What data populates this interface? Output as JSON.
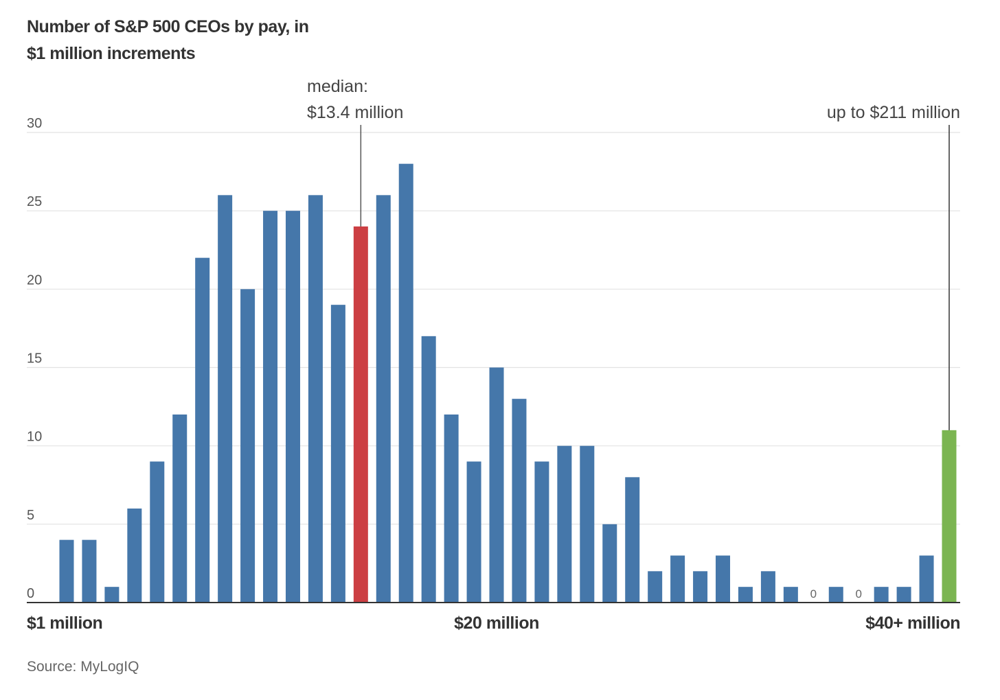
{
  "chart_data": {
    "type": "bar",
    "title": "Number of S&P 500 CEOs by pay, in $1 million increments",
    "title_lines": [
      "Number of S&P 500 CEOs by pay, in",
      "$1 million increments"
    ],
    "xlabel": "",
    "ylabel": "",
    "ylim": [
      0,
      30
    ],
    "yticks": [
      0,
      5,
      10,
      15,
      20,
      25,
      30
    ],
    "grid": true,
    "x_tick_labels": [
      {
        "index": 0,
        "label": "$1 million"
      },
      {
        "index": 19,
        "label": "$20 million"
      },
      {
        "index": 39,
        "label": "$40+ million"
      }
    ],
    "categories": [
      "$1M",
      "$2M",
      "$3M",
      "$4M",
      "$5M",
      "$6M",
      "$7M",
      "$8M",
      "$9M",
      "$10M",
      "$11M",
      "$12M",
      "$13M",
      "$14M",
      "$15M",
      "$16M",
      "$17M",
      "$18M",
      "$19M",
      "$20M",
      "$21M",
      "$22M",
      "$23M",
      "$24M",
      "$25M",
      "$26M",
      "$27M",
      "$28M",
      "$29M",
      "$30M",
      "$31M",
      "$32M",
      "$33M",
      "$34M",
      "$35M",
      "$36M",
      "$37M",
      "$38M",
      "$39M",
      "$40+M"
    ],
    "values": [
      4,
      4,
      1,
      6,
      9,
      12,
      22,
      26,
      20,
      25,
      25,
      26,
      19,
      24,
      26,
      28,
      17,
      12,
      9,
      15,
      13,
      9,
      10,
      10,
      5,
      8,
      2,
      3,
      2,
      3,
      1,
      2,
      1,
      0,
      1,
      0,
      1,
      1,
      3,
      11
    ],
    "zero_labels": [
      33,
      35
    ],
    "zero_label_text": "0",
    "highlights": [
      {
        "index": 13,
        "role": "median",
        "color": "#cc3f43",
        "annotation": [
          "median:",
          "$13.4 million"
        ]
      },
      {
        "index": 39,
        "role": "top",
        "color": "#7bb551",
        "annotation": [
          "up to $211 million"
        ]
      }
    ],
    "default_color": "#4577aa",
    "source": "Source: MyLogIQ"
  }
}
